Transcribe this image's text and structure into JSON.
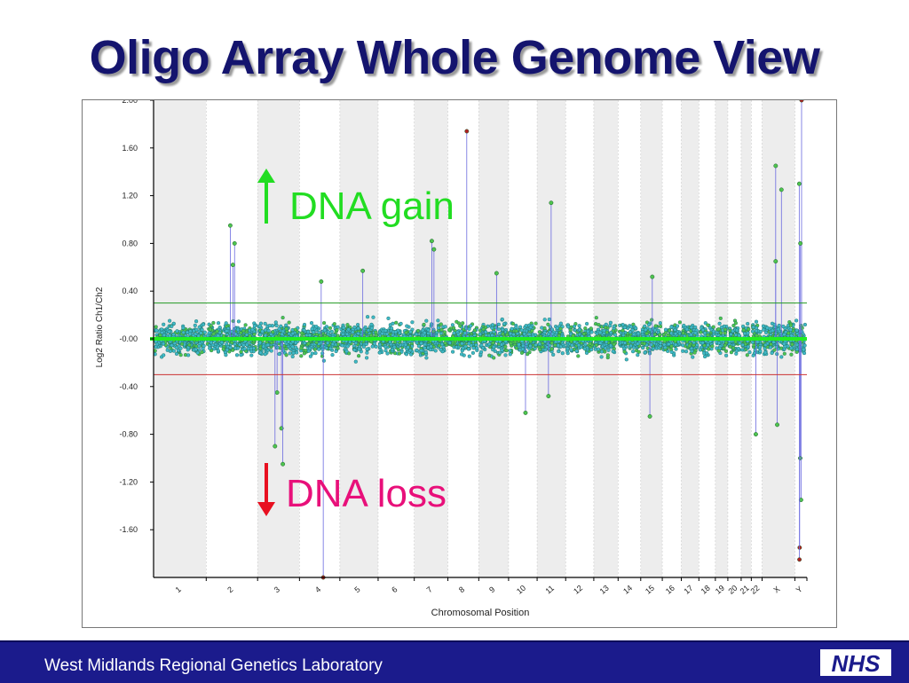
{
  "slide": {
    "title": "Oligo Array Whole Genome View",
    "gain_label": "DNA gain",
    "loss_label": "DNA loss",
    "footer": "West Midlands Regional Genetics Laboratory",
    "logo_text": "NHS"
  },
  "colors": {
    "title": "#14146e",
    "gain": "#22dd22",
    "loss": "#e8107a",
    "gain_arrow": "#22dd22",
    "loss_arrow": "#e81020",
    "footer_bg": "#1b1b8c",
    "points": "#3fb8c8",
    "points_edge": "#1a6a5a",
    "baseline": "#22ee22",
    "upper_threshold": "#229922",
    "lower_threshold": "#cc3333",
    "band": "#ededed"
  },
  "chart_data": {
    "type": "scatter",
    "xlabel": "Chromosomal Position",
    "ylabel": "Log2 Ratio Ch1/Ch2",
    "ylim": [
      -2.0,
      2.0
    ],
    "y_ticks": [
      "2.00",
      "1.60",
      "1.20",
      "0.80",
      "0.40",
      "-0.00",
      "-0.40",
      "-0.80",
      "-1.20",
      "-1.60"
    ],
    "y_tick_values": [
      2.0,
      1.6,
      1.2,
      0.8,
      0.4,
      0.0,
      -0.4,
      -0.8,
      -1.2,
      -1.6
    ],
    "chromosomes": [
      "1",
      "2",
      "3",
      "4",
      "5",
      "6",
      "7",
      "8",
      "9",
      "10",
      "11",
      "12",
      "13",
      "14",
      "15",
      "16",
      "17",
      "18",
      "19",
      "20",
      "21",
      "22",
      "X",
      "Y"
    ],
    "chromosome_widths": [
      249,
      243,
      198,
      191,
      181,
      171,
      159,
      146,
      141,
      135,
      135,
      133,
      115,
      107,
      102,
      90,
      83,
      78,
      59,
      63,
      48,
      51,
      155,
      57
    ],
    "baseline": 0.0,
    "threshold_upper": 0.3,
    "threshold_lower": -0.3,
    "grid": false,
    "outliers": [
      {
        "chromosome": "2",
        "value": 0.95
      },
      {
        "chromosome": "2",
        "value": 0.8
      },
      {
        "chromosome": "2",
        "value": 0.62
      },
      {
        "chromosome": "3",
        "value": -0.45
      },
      {
        "chromosome": "3",
        "value": -0.75
      },
      {
        "chromosome": "3",
        "value": -0.9
      },
      {
        "chromosome": "3",
        "value": -1.05
      },
      {
        "chromosome": "4",
        "value": -2.0
      },
      {
        "chromosome": "4",
        "value": 0.48
      },
      {
        "chromosome": "5",
        "value": 0.57
      },
      {
        "chromosome": "7",
        "value": 0.82
      },
      {
        "chromosome": "7",
        "value": 0.75
      },
      {
        "chromosome": "8",
        "value": 1.74
      },
      {
        "chromosome": "9",
        "value": 0.55
      },
      {
        "chromosome": "10",
        "value": -0.62
      },
      {
        "chromosome": "11",
        "value": 1.14
      },
      {
        "chromosome": "11",
        "value": -0.48
      },
      {
        "chromosome": "15",
        "value": -0.65
      },
      {
        "chromosome": "15",
        "value": 0.52
      },
      {
        "chromosome": "22",
        "value": -0.8
      },
      {
        "chromosome": "X",
        "value": 1.45
      },
      {
        "chromosome": "X",
        "value": 1.25
      },
      {
        "chromosome": "X",
        "value": 0.65
      },
      {
        "chromosome": "X",
        "value": -0.72
      },
      {
        "chromosome": "Y",
        "value": 2.0
      },
      {
        "chromosome": "Y",
        "value": 1.3
      },
      {
        "chromosome": "Y",
        "value": 0.8
      },
      {
        "chromosome": "Y",
        "value": -1.0
      },
      {
        "chromosome": "Y",
        "value": -1.35
      },
      {
        "chromosome": "Y",
        "value": -1.75
      },
      {
        "chromosome": "Y",
        "value": -1.85
      }
    ]
  }
}
